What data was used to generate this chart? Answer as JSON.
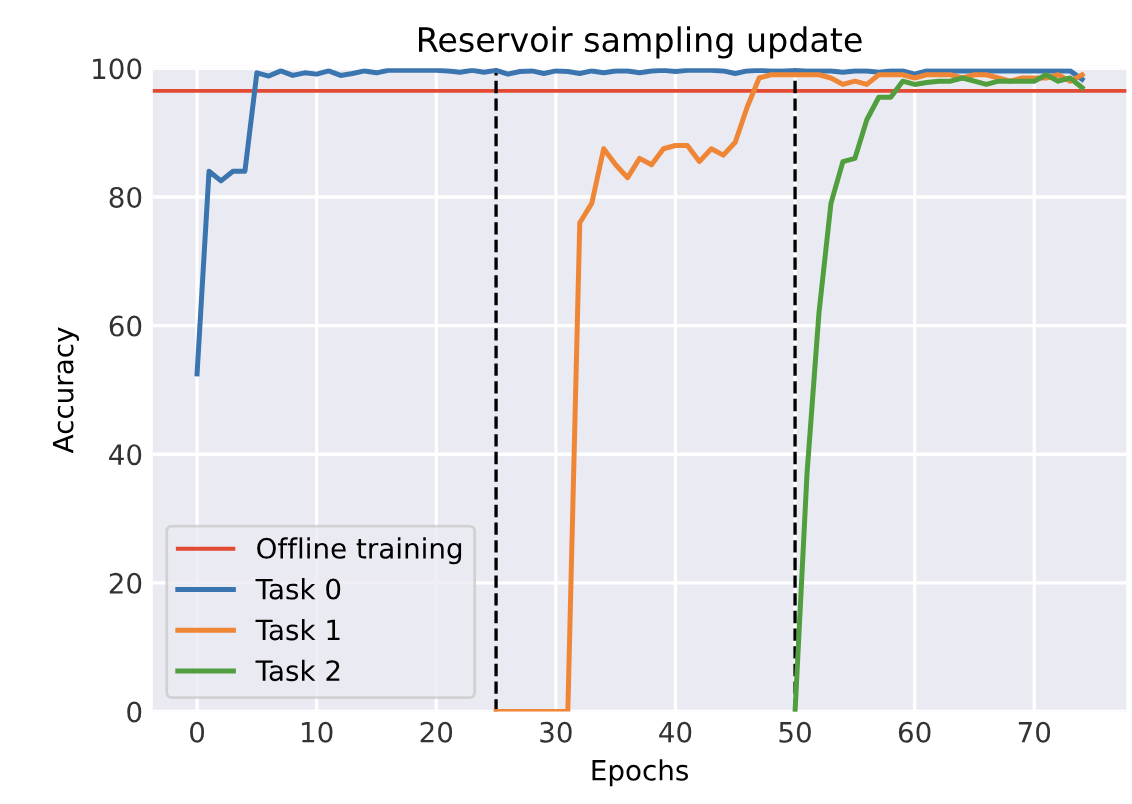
{
  "chart_data": {
    "type": "line",
    "title": "Reservoir sampling update",
    "xlabel": "Epochs",
    "ylabel": "Accuracy",
    "xlim": [
      -3.7,
      77.7
    ],
    "ylim": [
      0,
      100
    ],
    "xticks": [
      0,
      10,
      20,
      30,
      40,
      50,
      60,
      70
    ],
    "yticks": [
      0,
      20,
      40,
      60,
      80,
      100
    ],
    "grid": true,
    "legend": "bottom left",
    "line_style": "solid",
    "marker": "none",
    "ref_lines": [
      {
        "axis": "y",
        "value": 96.5,
        "label": "Offline training",
        "color": "#e24a33",
        "line_style": "solid"
      },
      {
        "axis": "x",
        "value": 25,
        "color": "#000000",
        "line_style": "dashed"
      },
      {
        "axis": "x",
        "value": 50,
        "color": "#000000",
        "line_style": "dashed"
      }
    ],
    "series": [
      {
        "name": "Task 0",
        "color": "#3b75af",
        "x": [
          0,
          1,
          2,
          3,
          4,
          5,
          6,
          7,
          8,
          9,
          10,
          11,
          12,
          13,
          14,
          15,
          16,
          17,
          18,
          19,
          20,
          21,
          22,
          23,
          24,
          25,
          26,
          27,
          28,
          29,
          30,
          31,
          32,
          33,
          34,
          35,
          36,
          37,
          38,
          39,
          40,
          41,
          42,
          43,
          44,
          45,
          46,
          47,
          48,
          49,
          50,
          51,
          52,
          53,
          54,
          55,
          56,
          57,
          58,
          59,
          60,
          61,
          62,
          63,
          64,
          65,
          66,
          67,
          68,
          69,
          70,
          71,
          72,
          73,
          74
        ],
        "values": [
          52.5,
          84,
          82.5,
          84,
          84,
          99.3,
          98.8,
          99.6,
          98.9,
          99.3,
          99.1,
          99.6,
          98.9,
          99.2,
          99.6,
          99.3,
          99.7,
          99.7,
          99.7,
          99.7,
          99.7,
          99.6,
          99.4,
          99.7,
          99.4,
          99.7,
          99.1,
          99.5,
          99.6,
          99.2,
          99.6,
          99.5,
          99.2,
          99.6,
          99.3,
          99.6,
          99.6,
          99.3,
          99.6,
          99.7,
          99.5,
          99.7,
          99.7,
          99.7,
          99.6,
          99.2,
          99.6,
          99.7,
          99.6,
          99.6,
          99.7,
          99.6,
          99.6,
          99.6,
          99.4,
          99.6,
          99.6,
          99.4,
          99.6,
          99.6,
          99.1,
          99.6,
          99.6,
          99.6,
          99.6,
          99.6,
          99.6,
          99.6,
          99.6,
          99.6,
          99.6,
          99.6,
          99.6,
          99.6,
          98.3
        ]
      },
      {
        "name": "Task 1",
        "color": "#ef8636",
        "x": [
          25,
          26,
          27,
          28,
          29,
          30,
          31,
          32,
          33,
          34,
          35,
          36,
          37,
          38,
          39,
          40,
          41,
          42,
          43,
          44,
          45,
          46,
          47,
          48,
          49,
          50,
          51,
          52,
          53,
          54,
          55,
          56,
          57,
          58,
          59,
          60,
          61,
          62,
          63,
          64,
          65,
          66,
          67,
          68,
          69,
          70,
          71,
          72,
          73,
          74
        ],
        "values": [
          0,
          0,
          0,
          0,
          0,
          0,
          0,
          76,
          79,
          87.5,
          85,
          83,
          86,
          85,
          87.5,
          88,
          88,
          85.5,
          87.5,
          86.5,
          88.5,
          94,
          98.5,
          99,
          99,
          99,
          99,
          99,
          98.5,
          97.5,
          98,
          97.5,
          99,
          99,
          99,
          98.5,
          99,
          99,
          99,
          98.5,
          99,
          99,
          98.5,
          98,
          98.5,
          98.5,
          98.5,
          99,
          98,
          99
        ]
      },
      {
        "name": "Task 2",
        "color": "#519e3e",
        "x": [
          50,
          51,
          52,
          53,
          54,
          55,
          56,
          57,
          58,
          59,
          60,
          61,
          62,
          63,
          64,
          65,
          66,
          67,
          68,
          69,
          70,
          71,
          72,
          73,
          74
        ],
        "values": [
          0,
          37,
          62,
          79,
          85.5,
          86,
          92,
          95.5,
          95.5,
          98,
          97.5,
          97.8,
          98,
          98,
          98.5,
          98,
          97.5,
          98,
          98,
          98,
          98,
          99,
          98,
          98.5,
          97
        ]
      }
    ]
  }
}
